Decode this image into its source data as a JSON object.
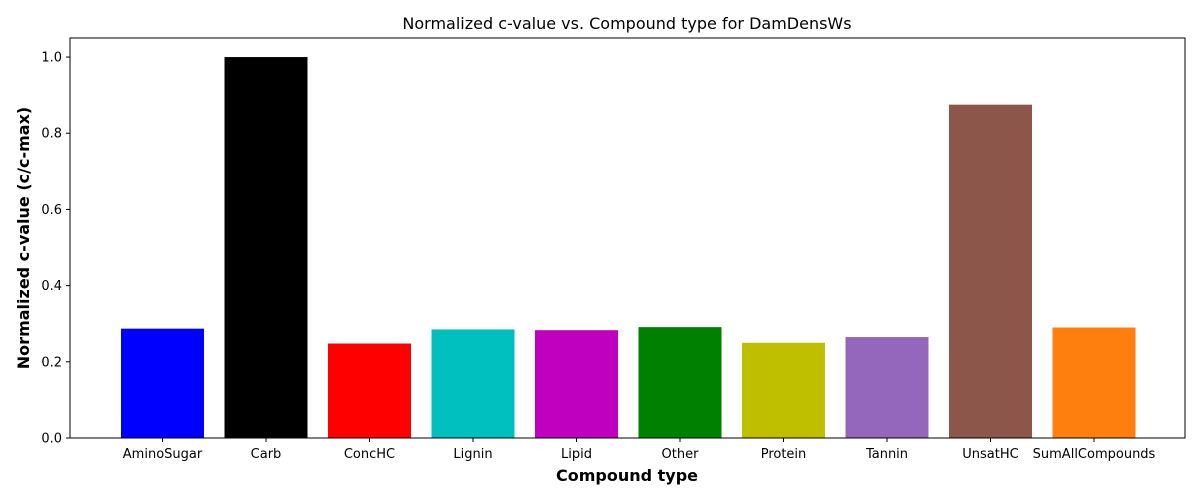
{
  "chart_data": {
    "type": "bar",
    "title": "Normalized c-value vs. Compound type for DamDensWs",
    "xlabel": "Compound type",
    "ylabel": "Normalized c-value (c/c-max)",
    "ylim": [
      0.0,
      1.05
    ],
    "yticks": [
      "0.0",
      "0.2",
      "0.4",
      "0.6",
      "0.8",
      "1.0"
    ],
    "grid": false,
    "categories": [
      "AminoSugar",
      "Carb",
      "ConcHC",
      "Lignin",
      "Lipid",
      "Other",
      "Protein",
      "Tannin",
      "UnsatHC",
      "SumAllCompounds"
    ],
    "values": [
      0.287,
      1.0,
      0.248,
      0.285,
      0.283,
      0.291,
      0.25,
      0.265,
      0.875,
      0.29
    ],
    "colors": [
      "#0000ff",
      "#000000",
      "#ff0000",
      "#00bfbf",
      "#bf00bf",
      "#008000",
      "#bfbf00",
      "#9467bd",
      "#8c564b",
      "#ff7f0e"
    ]
  }
}
